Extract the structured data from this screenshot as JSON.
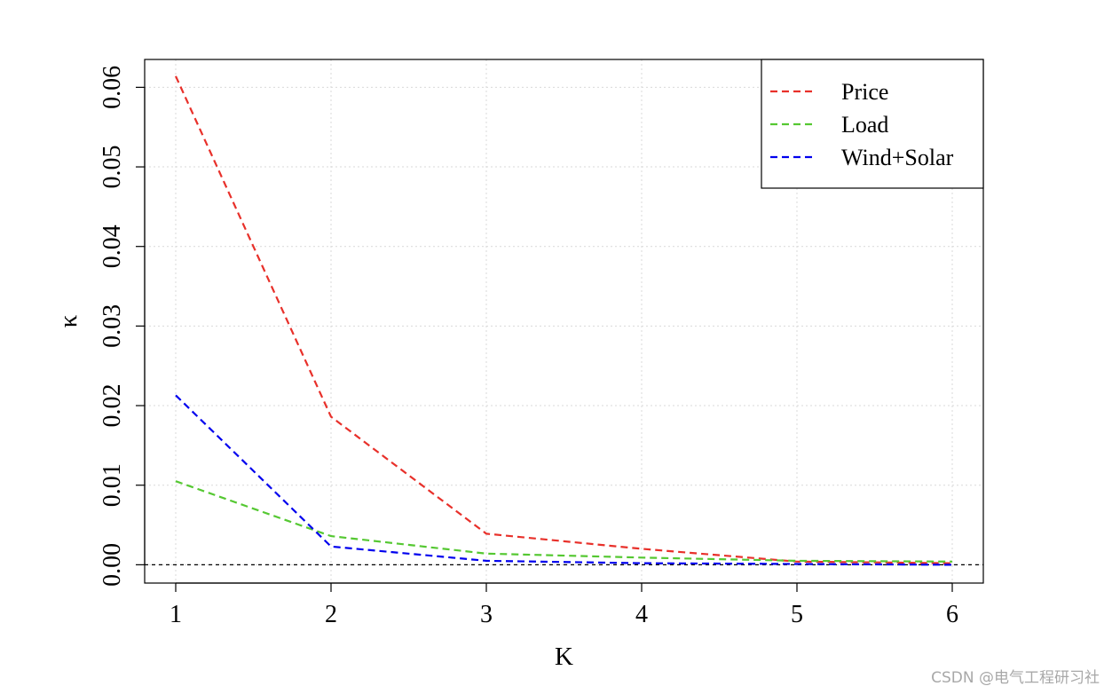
{
  "chart_data": {
    "type": "line",
    "title": "",
    "xlabel": "K",
    "ylabel": "κ",
    "x": [
      1,
      2,
      3,
      4,
      5,
      6
    ],
    "xlim": [
      0.8,
      6.2
    ],
    "ylim": [
      -0.0023,
      0.0635
    ],
    "xticks": [
      "1",
      "2",
      "3",
      "4",
      "5",
      "6"
    ],
    "yticks": [
      "0.00",
      "0.01",
      "0.02",
      "0.03",
      "0.04",
      "0.05",
      "0.06"
    ],
    "grid": true,
    "legend_position": "top-right",
    "reference_line": 0,
    "series": [
      {
        "name": "Price",
        "color": "#e8302a",
        "values": [
          0.0614,
          0.0186,
          0.0039,
          0.002,
          0.0004,
          0.0002
        ]
      },
      {
        "name": "Load",
        "color": "#55c832",
        "values": [
          0.0105,
          0.0036,
          0.0014,
          0.0009,
          0.0005,
          0.0004
        ]
      },
      {
        "name": "Wind+Solar",
        "color": "#0000ee",
        "values": [
          0.0213,
          0.0023,
          0.0005,
          0.0002,
          0.0001,
          0.0
        ]
      }
    ]
  },
  "watermark": "CSDN @电气工程研习社"
}
